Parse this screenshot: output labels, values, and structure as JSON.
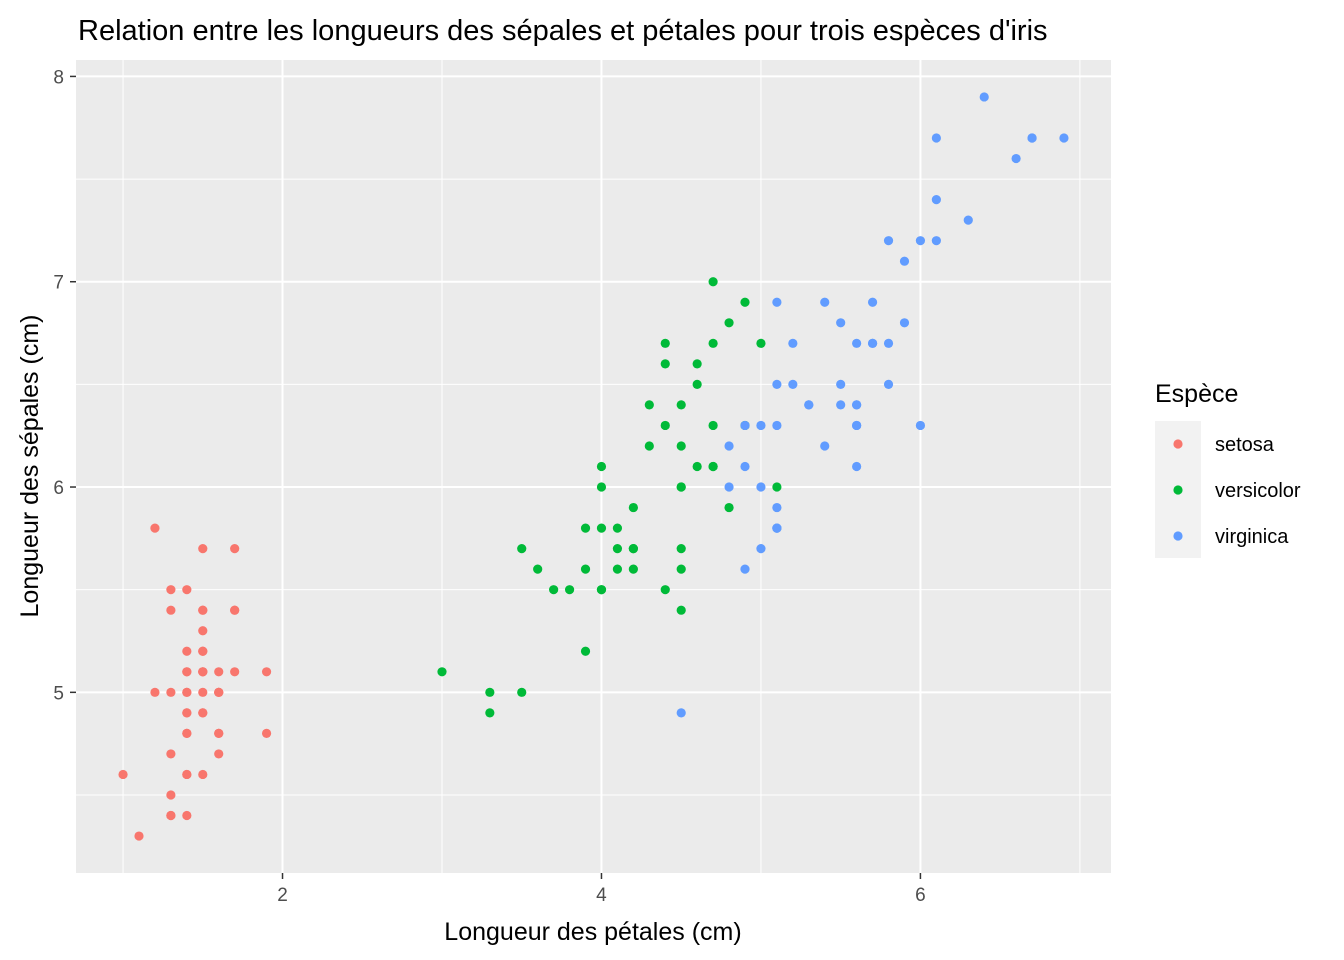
{
  "chart_data": {
    "type": "scatter",
    "title": "Relation entre les longueurs des sépales et pétales pour trois  espèces d'iris",
    "xlabel": "Longueur des pétales (cm)",
    "ylabel": "Longueur des sépales (cm)",
    "xlim": [
      0.705,
      7.195
    ],
    "ylim": [
      4.12,
      8.08
    ],
    "x_ticks": [
      2,
      4,
      6
    ],
    "x_tick_labels": [
      "2",
      "4",
      "6"
    ],
    "y_ticks": [
      5,
      6,
      7,
      8
    ],
    "y_tick_labels": [
      "5",
      "6",
      "7",
      "8"
    ],
    "x_minor_ticks": [
      1,
      3,
      5,
      7
    ],
    "y_minor_ticks": [
      4.5,
      5.5,
      6.5,
      7.5
    ],
    "grid": true,
    "legend": {
      "title": "Espèce",
      "position": "right"
    },
    "series": [
      {
        "name": "setosa",
        "color": "#f8766d",
        "points": [
          [
            1.4,
            5.1
          ],
          [
            1.4,
            4.9
          ],
          [
            1.3,
            4.7
          ],
          [
            1.5,
            4.6
          ],
          [
            1.4,
            5.0
          ],
          [
            1.7,
            5.4
          ],
          [
            1.4,
            4.6
          ],
          [
            1.5,
            5.0
          ],
          [
            1.4,
            4.4
          ],
          [
            1.5,
            4.9
          ],
          [
            1.5,
            5.4
          ],
          [
            1.6,
            4.8
          ],
          [
            1.4,
            4.8
          ],
          [
            1.1,
            4.3
          ],
          [
            1.2,
            5.8
          ],
          [
            1.5,
            5.7
          ],
          [
            1.3,
            5.4
          ],
          [
            1.4,
            5.1
          ],
          [
            1.7,
            5.7
          ],
          [
            1.5,
            5.1
          ],
          [
            1.7,
            5.4
          ],
          [
            1.5,
            5.1
          ],
          [
            1.0,
            4.6
          ],
          [
            1.7,
            5.1
          ],
          [
            1.9,
            4.8
          ],
          [
            1.6,
            5.0
          ],
          [
            1.6,
            5.0
          ],
          [
            1.5,
            5.2
          ],
          [
            1.4,
            5.2
          ],
          [
            1.6,
            4.7
          ],
          [
            1.6,
            4.8
          ],
          [
            1.5,
            5.4
          ],
          [
            1.5,
            5.2
          ],
          [
            1.4,
            5.5
          ],
          [
            1.5,
            4.9
          ],
          [
            1.2,
            5.0
          ],
          [
            1.3,
            5.5
          ],
          [
            1.4,
            4.9
          ],
          [
            1.3,
            4.4
          ],
          [
            1.5,
            5.1
          ],
          [
            1.3,
            5.0
          ],
          [
            1.3,
            4.5
          ],
          [
            1.3,
            4.4
          ],
          [
            1.6,
            5.0
          ],
          [
            1.9,
            5.1
          ],
          [
            1.4,
            4.8
          ],
          [
            1.6,
            5.1
          ],
          [
            1.4,
            4.6
          ],
          [
            1.5,
            5.3
          ],
          [
            1.4,
            5.0
          ]
        ]
      },
      {
        "name": "versicolor",
        "color": "#00ba38",
        "points": [
          [
            4.7,
            7.0
          ],
          [
            4.5,
            6.4
          ],
          [
            4.9,
            6.9
          ],
          [
            4.0,
            5.5
          ],
          [
            4.6,
            6.5
          ],
          [
            4.5,
            5.7
          ],
          [
            4.7,
            6.3
          ],
          [
            3.3,
            4.9
          ],
          [
            4.6,
            6.6
          ],
          [
            3.9,
            5.2
          ],
          [
            3.5,
            5.0
          ],
          [
            4.2,
            5.9
          ],
          [
            4.0,
            6.0
          ],
          [
            4.7,
            6.1
          ],
          [
            3.6,
            5.6
          ],
          [
            4.4,
            6.7
          ],
          [
            4.5,
            5.6
          ],
          [
            4.1,
            5.8
          ],
          [
            4.5,
            6.2
          ],
          [
            3.9,
            5.6
          ],
          [
            4.8,
            5.9
          ],
          [
            4.0,
            6.1
          ],
          [
            4.9,
            6.3
          ],
          [
            4.7,
            6.1
          ],
          [
            4.3,
            6.4
          ],
          [
            4.4,
            6.6
          ],
          [
            4.8,
            6.8
          ],
          [
            5.0,
            6.7
          ],
          [
            4.5,
            6.0
          ],
          [
            3.5,
            5.7
          ],
          [
            3.8,
            5.5
          ],
          [
            3.7,
            5.5
          ],
          [
            3.9,
            5.8
          ],
          [
            5.1,
            6.0
          ],
          [
            4.5,
            5.4
          ],
          [
            4.5,
            6.0
          ],
          [
            4.7,
            6.7
          ],
          [
            4.4,
            6.3
          ],
          [
            4.1,
            5.6
          ],
          [
            4.0,
            5.5
          ],
          [
            4.4,
            5.5
          ],
          [
            4.6,
            6.1
          ],
          [
            4.0,
            5.8
          ],
          [
            3.3,
            5.0
          ],
          [
            4.2,
            5.6
          ],
          [
            4.2,
            5.7
          ],
          [
            4.2,
            5.7
          ],
          [
            4.3,
            6.2
          ],
          [
            3.0,
            5.1
          ],
          [
            4.1,
            5.7
          ]
        ]
      },
      {
        "name": "virginica",
        "color": "#619cff",
        "points": [
          [
            6.0,
            6.3
          ],
          [
            5.1,
            5.8
          ],
          [
            5.9,
            7.1
          ],
          [
            5.6,
            6.3
          ],
          [
            5.8,
            6.5
          ],
          [
            6.6,
            7.6
          ],
          [
            4.5,
            4.9
          ],
          [
            6.3,
            7.3
          ],
          [
            5.8,
            6.7
          ],
          [
            6.1,
            7.2
          ],
          [
            5.1,
            6.5
          ],
          [
            5.3,
            6.4
          ],
          [
            5.5,
            6.8
          ],
          [
            5.0,
            5.7
          ],
          [
            5.1,
            5.8
          ],
          [
            5.3,
            6.4
          ],
          [
            5.5,
            6.5
          ],
          [
            6.7,
            7.7
          ],
          [
            6.9,
            7.7
          ],
          [
            5.0,
            6.0
          ],
          [
            5.7,
            6.9
          ],
          [
            4.9,
            5.6
          ],
          [
            6.7,
            7.7
          ],
          [
            4.9,
            6.3
          ],
          [
            5.7,
            6.7
          ],
          [
            6.0,
            7.2
          ],
          [
            4.8,
            6.2
          ],
          [
            4.9,
            6.1
          ],
          [
            5.6,
            6.4
          ],
          [
            5.8,
            7.2
          ],
          [
            6.1,
            7.4
          ],
          [
            6.4,
            7.9
          ],
          [
            5.6,
            6.4
          ],
          [
            5.1,
            6.3
          ],
          [
            5.6,
            6.1
          ],
          [
            6.1,
            7.7
          ],
          [
            5.6,
            6.3
          ],
          [
            5.5,
            6.4
          ],
          [
            4.8,
            6.0
          ],
          [
            5.4,
            6.9
          ],
          [
            5.6,
            6.7
          ],
          [
            5.1,
            6.9
          ],
          [
            5.1,
            5.8
          ],
          [
            5.9,
            6.8
          ],
          [
            5.7,
            6.7
          ],
          [
            5.2,
            6.7
          ],
          [
            5.0,
            6.3
          ],
          [
            5.2,
            6.5
          ],
          [
            5.4,
            6.2
          ],
          [
            5.1,
            5.9
          ]
        ]
      }
    ]
  }
}
